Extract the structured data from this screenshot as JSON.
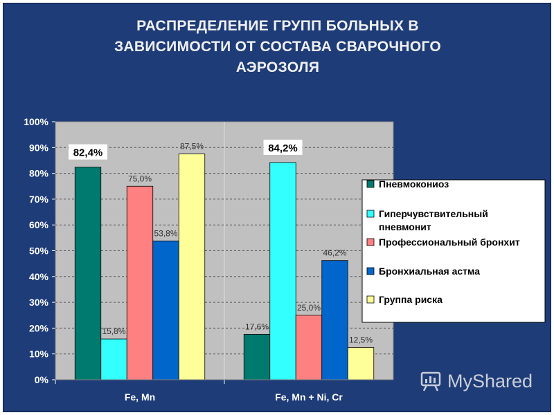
{
  "colors": {
    "background": "#1e3c78",
    "plot_area": "#c0c0c0",
    "series": [
      "#007a6e",
      "#33ffff",
      "#ff8080",
      "#0066cc",
      "#ffff99"
    ]
  },
  "watermark": {
    "text": "MyShared",
    "icon": "myshared-logo-icon"
  },
  "chart_data": {
    "type": "bar",
    "title": "РАСПРЕДЕЛЕНИЕ ГРУПП БОЛЬНЫХ В ЗАВИСИМОСТИ ОТ СОСТАВА СВАРОЧНОГО АЭРОЗОЛЯ",
    "title_lines": [
      "РАСПРЕДЕЛЕНИЕ ГРУПП БОЛЬНЫХ В",
      "ЗАВИСИМОСТИ ОТ СОСТАВА СВАРОЧНОГО",
      "АЭРОЗОЛЯ"
    ],
    "categories": [
      "Fe, Mn",
      "Fe, Mn + Ni, Cr"
    ],
    "yticks": [
      "0%",
      "10%",
      "20%",
      "30%",
      "40%",
      "50%",
      "60%",
      "70%",
      "80%",
      "90%",
      "100%"
    ],
    "ylim": [
      0,
      100
    ],
    "grid": true,
    "legend_position": "right",
    "series": [
      {
        "name": "Пневмокониоз",
        "values": [
          82.4,
          17.6
        ],
        "labels": [
          "82,4%",
          "17,6%"
        ],
        "emphasis": [
          true,
          false
        ]
      },
      {
        "name": "Гиперчувствительный пневмонит",
        "name_lines": [
          "Гиперчувствительный",
          "пневмонит"
        ],
        "values": [
          15.8,
          84.2
        ],
        "labels": [
          "15,8%",
          "84,2%"
        ],
        "emphasis": [
          false,
          true
        ]
      },
      {
        "name": "Профессиональный бронхит",
        "values": [
          75.0,
          25.0
        ],
        "labels": [
          "75,0%",
          "25,0%"
        ],
        "emphasis": [
          false,
          false
        ]
      },
      {
        "name": "Бронхиальная астма",
        "values": [
          53.8,
          46.2
        ],
        "labels": [
          "53,8%",
          "46,2%"
        ],
        "emphasis": [
          false,
          false
        ]
      },
      {
        "name": "Группа риска",
        "values": [
          87.5,
          12.5
        ],
        "labels": [
          "87,5%",
          "12,5%"
        ],
        "emphasis": [
          false,
          false
        ]
      }
    ]
  }
}
